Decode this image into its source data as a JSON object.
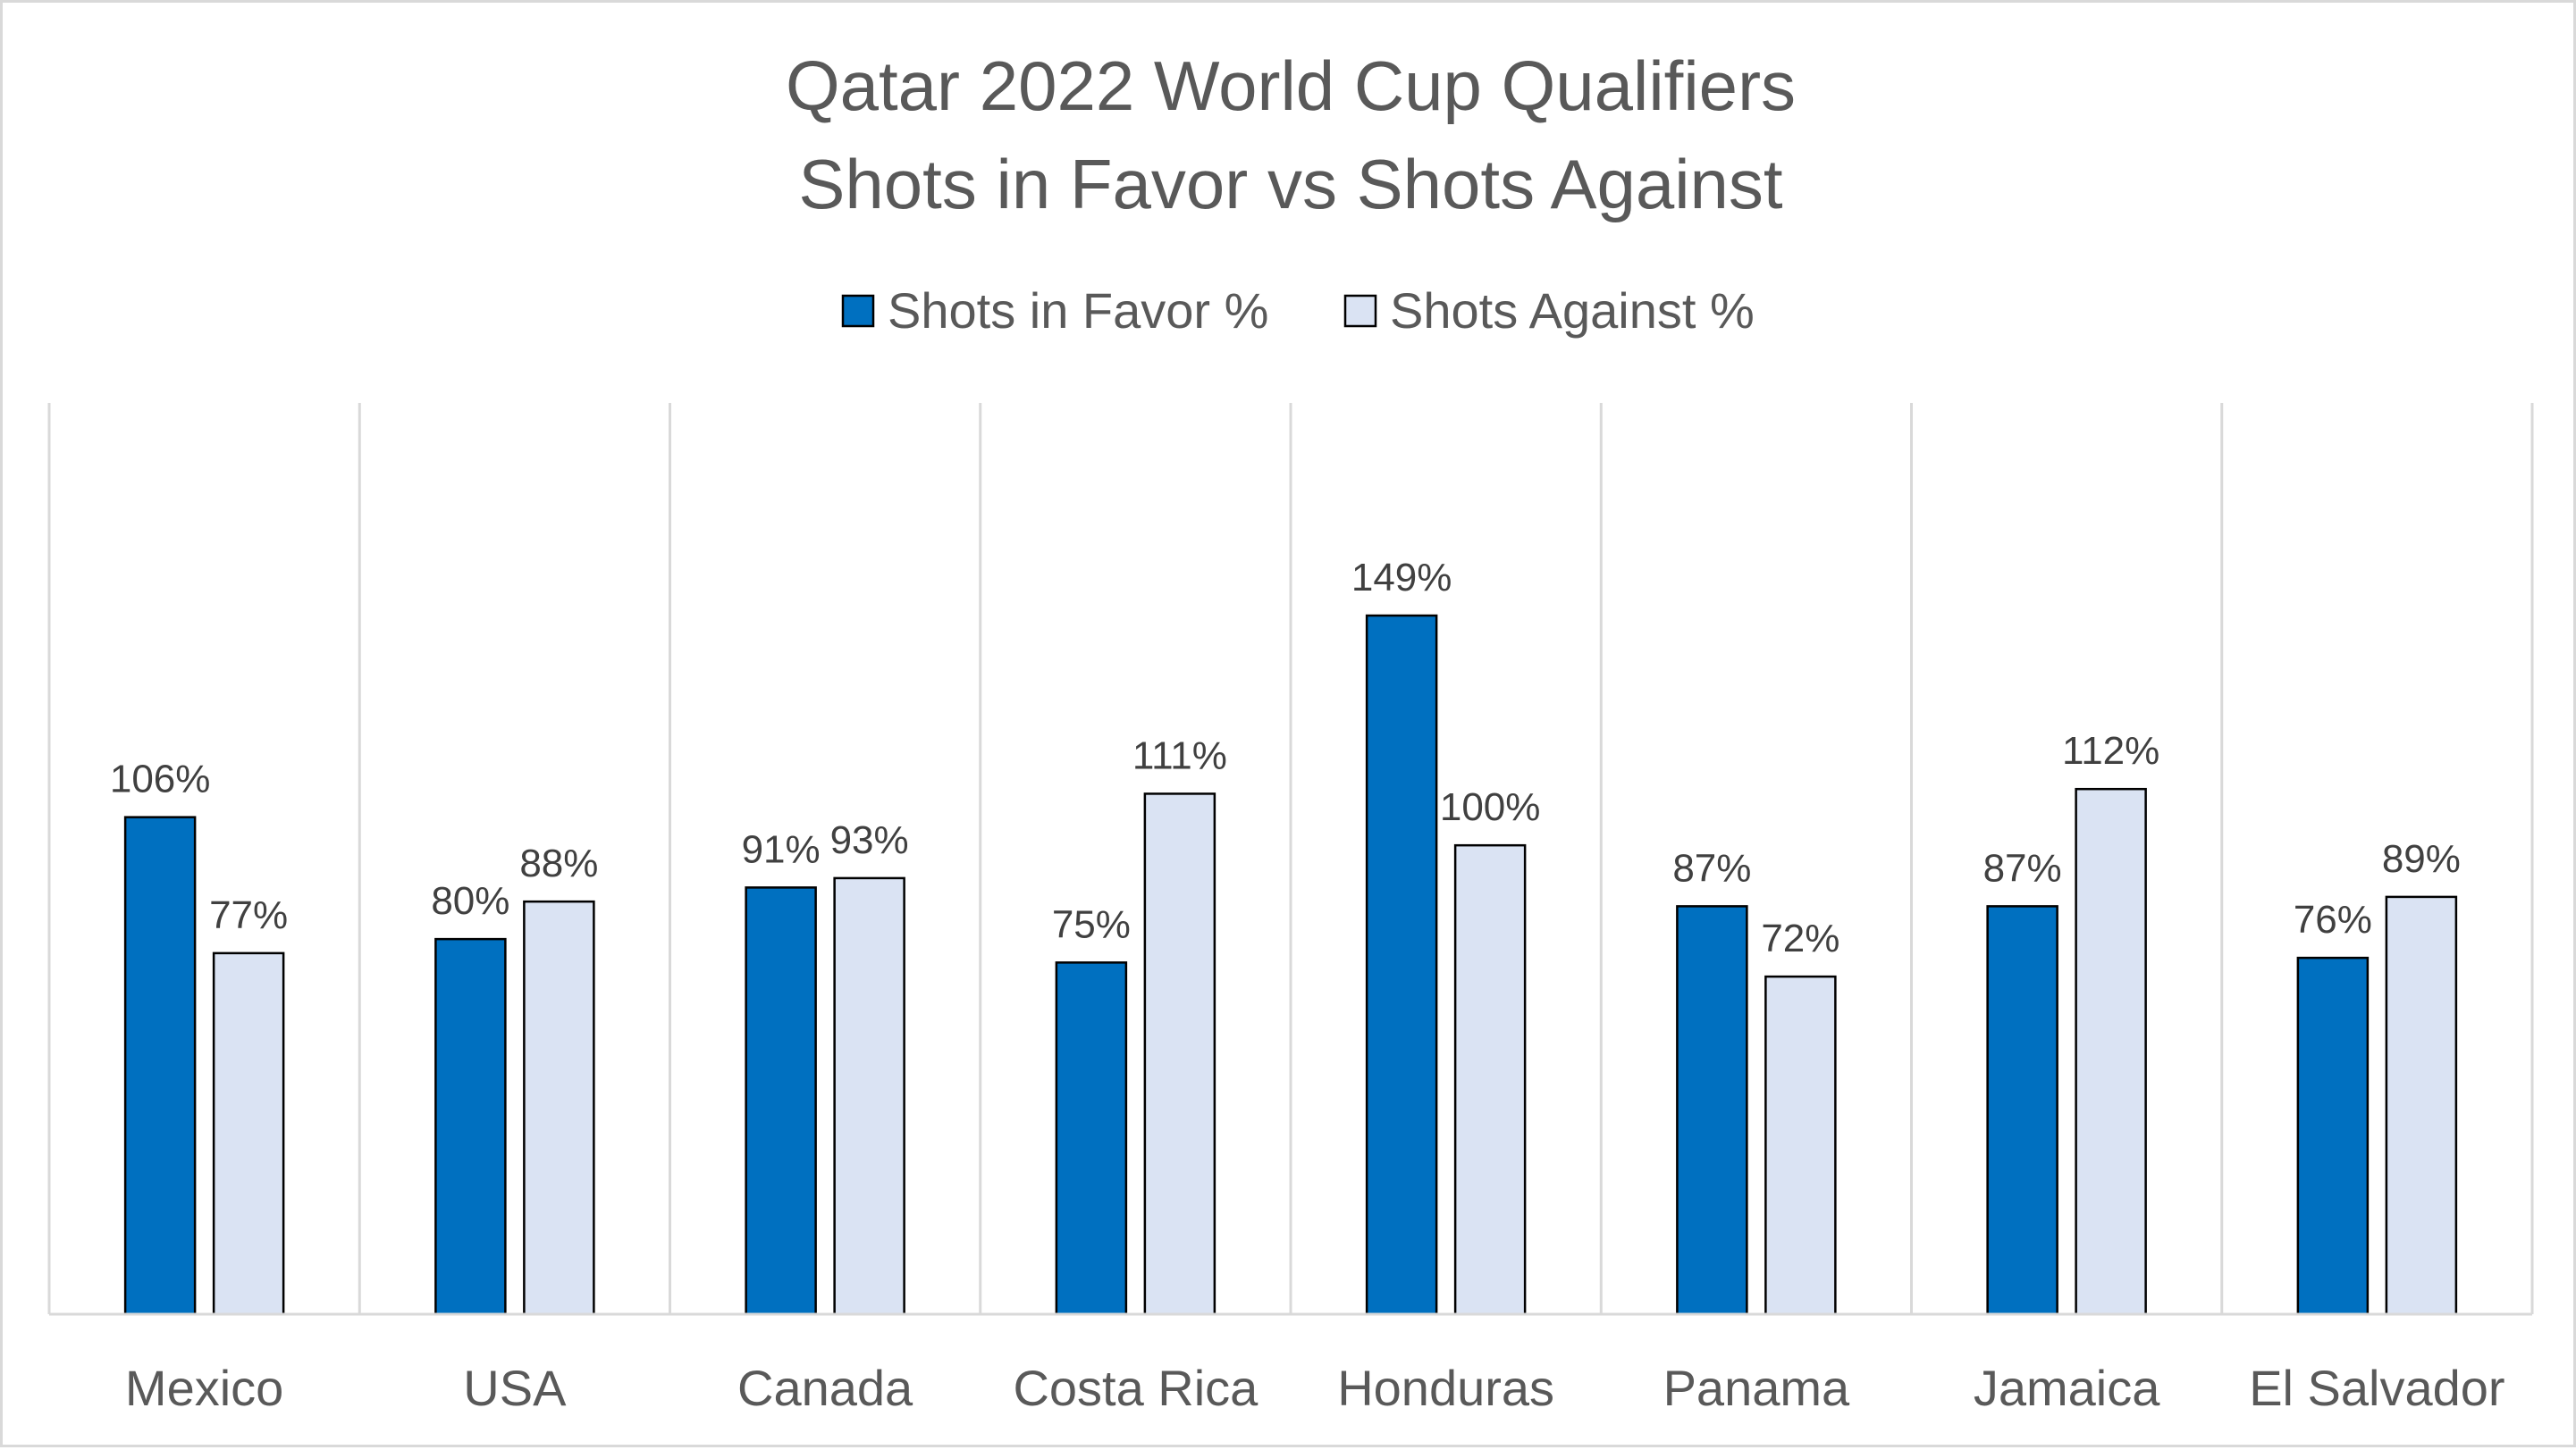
{
  "chart_data": {
    "type": "bar",
    "title": "Qatar 2022 World Cup Qualifiers",
    "subtitle": "Shots in Favor vs Shots Against",
    "categories": [
      "Mexico",
      "USA",
      "Canada",
      "Costa Rica",
      "Honduras",
      "Panama",
      "Jamaica",
      "El Salvador"
    ],
    "series": [
      {
        "name": "Shots in Favor %",
        "values": [
          106,
          80,
          91,
          75,
          149,
          87,
          87,
          76
        ],
        "labels": [
          "106%",
          "80%",
          "91%",
          "75%",
          "149%",
          "87%",
          "87%",
          "76%"
        ],
        "color": "#0070c0"
      },
      {
        "name": "Shots Against %",
        "values": [
          77,
          88,
          93,
          111,
          100,
          72,
          112,
          89
        ],
        "labels": [
          "77%",
          "88%",
          "93%",
          "111%",
          "100%",
          "72%",
          "112%",
          "89%"
        ],
        "color": "#dae3f3"
      }
    ],
    "ylim": [
      0,
      160
    ],
    "legend_position": "top-center",
    "xlabel": "",
    "ylabel": "",
    "grid": "vertical-category-separators",
    "bar_border_color": "#000000",
    "axis_color": "#d9d9d9"
  }
}
